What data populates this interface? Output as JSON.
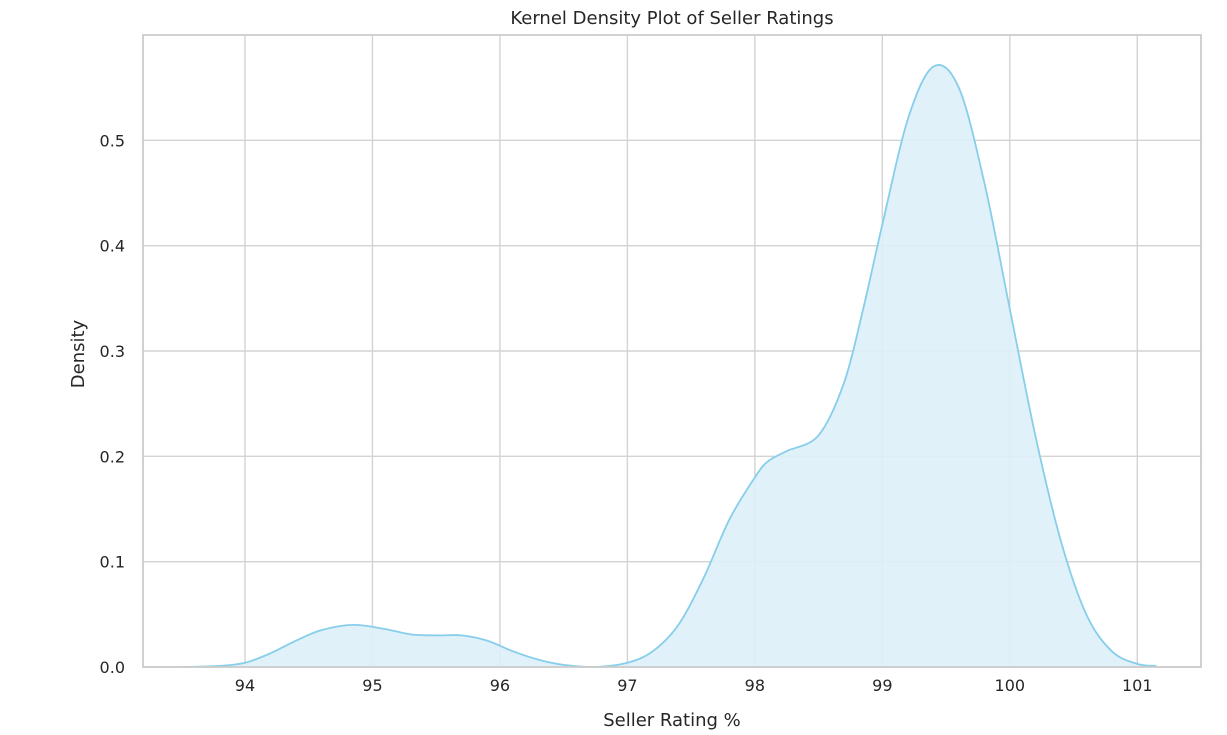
{
  "chart_data": {
    "type": "area",
    "title": "Kernel Density Plot of Seller Ratings",
    "xlabel": "Seller Rating %",
    "ylabel": "Density",
    "xlim": [
      93.2,
      101.5
    ],
    "ylim": [
      0,
      0.6
    ],
    "xticks": [
      94,
      95,
      96,
      97,
      98,
      99,
      100,
      101
    ],
    "yticks": [
      0.0,
      0.1,
      0.2,
      0.3,
      0.4,
      0.5
    ],
    "grid": true,
    "color": "#87ceeb",
    "fill_color": "#ddf0f8",
    "series": [
      {
        "x": [
          93.5,
          93.8,
          94.0,
          94.2,
          94.4,
          94.6,
          94.85,
          95.1,
          95.3,
          95.5,
          95.7,
          95.9,
          96.1,
          96.3,
          96.5,
          96.75,
          97.0,
          97.2,
          97.4,
          97.6,
          97.8,
          98.0,
          98.1,
          98.25,
          98.5,
          98.7,
          98.85,
          99.0,
          99.2,
          99.4,
          99.6,
          99.8,
          100.0,
          100.2,
          100.4,
          100.6,
          100.8,
          101.0,
          101.15
        ],
        "y": [
          0.0,
          0.001,
          0.004,
          0.013,
          0.025,
          0.035,
          0.04,
          0.036,
          0.031,
          0.03,
          0.03,
          0.025,
          0.015,
          0.007,
          0.002,
          0.0,
          0.004,
          0.015,
          0.04,
          0.085,
          0.14,
          0.18,
          0.195,
          0.205,
          0.22,
          0.27,
          0.34,
          0.42,
          0.52,
          0.57,
          0.55,
          0.46,
          0.34,
          0.22,
          0.12,
          0.05,
          0.015,
          0.003,
          0.001
        ]
      }
    ]
  }
}
